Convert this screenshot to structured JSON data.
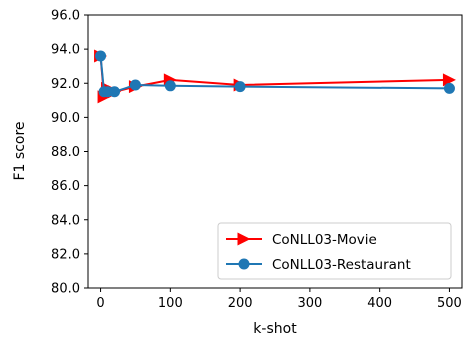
{
  "chart_data": {
    "type": "line",
    "title": "",
    "xlabel": "k-shot",
    "ylabel": "F1 score",
    "xlim": [
      -18,
      518
    ],
    "ylim": [
      80.0,
      96.0
    ],
    "xticks": [
      0,
      100,
      200,
      300,
      400,
      500
    ],
    "xtick_labels": [
      "0",
      "100",
      "200",
      "300",
      "400",
      "500"
    ],
    "yticks": [
      80,
      82,
      84,
      86,
      88,
      90,
      92,
      94,
      96
    ],
    "ytick_labels": [
      "80.0",
      "82.0",
      "84.0",
      "86.0",
      "88.0",
      "90.0",
      "92.0",
      "94.0",
      "96.0"
    ],
    "grid": false,
    "legend_position": "lower-right",
    "series": [
      {
        "name": "CoNLL03-Movie",
        "color": "#ff0000",
        "marker": "triangle-right",
        "x": [
          0,
          5,
          10,
          20,
          50,
          100,
          200,
          500
        ],
        "y": [
          93.6,
          91.2,
          91.7,
          91.5,
          91.8,
          92.2,
          91.9,
          92.2
        ]
      },
      {
        "name": "CoNLL03-Restaurant",
        "color": "#1f77b4",
        "marker": "circle",
        "x": [
          0,
          5,
          10,
          20,
          50,
          100,
          200,
          500
        ],
        "y": [
          93.6,
          91.5,
          91.5,
          91.5,
          91.9,
          91.85,
          91.8,
          91.7
        ]
      }
    ]
  }
}
